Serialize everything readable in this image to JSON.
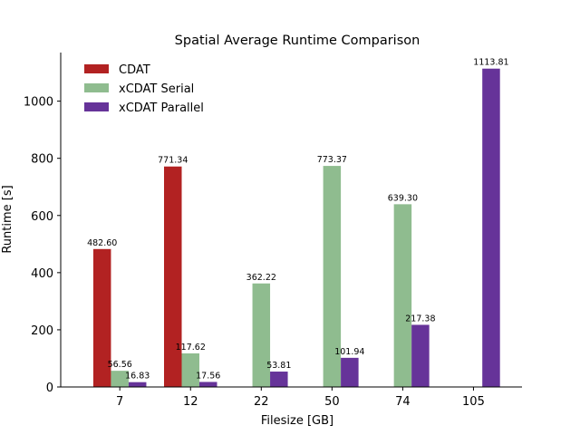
{
  "chart_data": {
    "type": "bar",
    "title": "Spatial Average Runtime Comparison",
    "xlabel": "Filesize [GB]",
    "ylabel": "Runtime [s]",
    "categories": [
      "7",
      "12",
      "22",
      "50",
      "74",
      "105"
    ],
    "ylim": [
      0,
      1170
    ],
    "yticks": [
      0,
      200,
      400,
      600,
      800,
      1000
    ],
    "grid": false,
    "legend_position": "top-left",
    "series": [
      {
        "name": "CDAT",
        "color": "#b22222",
        "values": [
          482.6,
          771.34,
          null,
          null,
          null,
          null
        ],
        "labels": [
          "482.60",
          "771.34",
          null,
          null,
          null,
          null
        ]
      },
      {
        "name": "xCDAT Serial",
        "color": "#8fbc8f",
        "values": [
          56.56,
          117.62,
          362.22,
          773.37,
          639.3,
          null
        ],
        "labels": [
          "56.56",
          "117.62",
          "362.22",
          "773.37",
          "639.30",
          null
        ]
      },
      {
        "name": "xCDAT Parallel",
        "color": "#663399",
        "values": [
          16.83,
          17.56,
          53.81,
          101.94,
          217.38,
          1113.81
        ],
        "labels": [
          "16.83",
          "17.56",
          "53.81",
          "101.94",
          "217.38",
          "1113.81"
        ]
      }
    ]
  }
}
